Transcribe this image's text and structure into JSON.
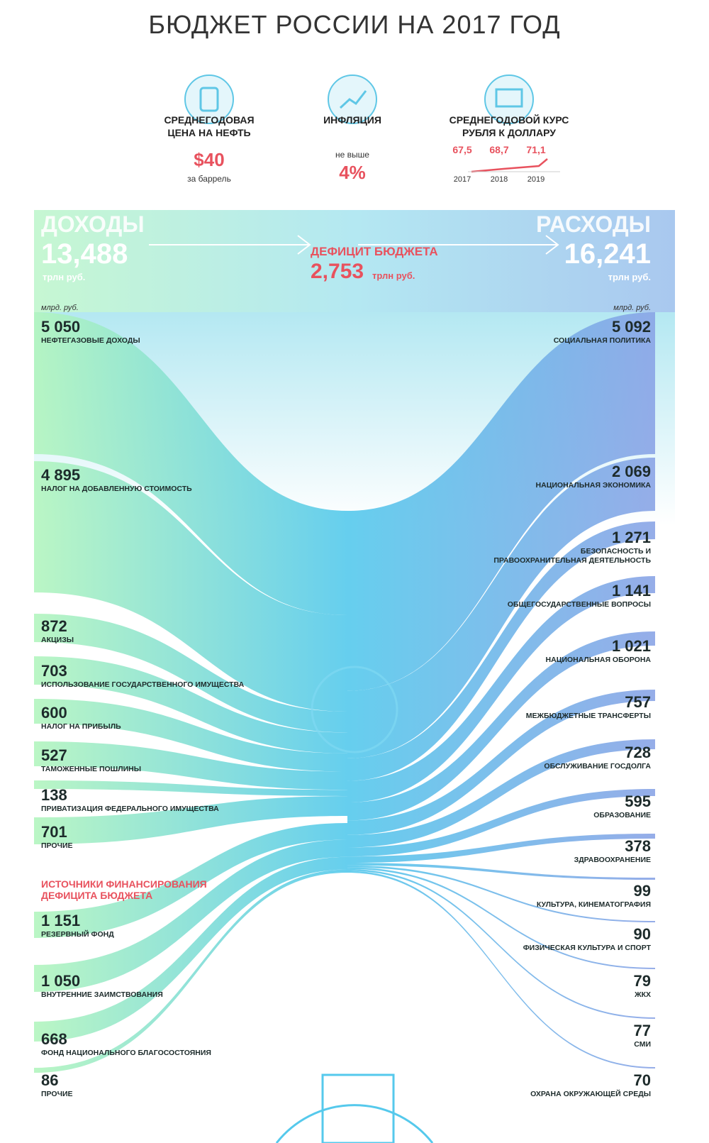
{
  "header": {
    "title": "БЮДЖЕТ РОССИИ НА 2017 ГОД"
  },
  "indicators": {
    "oil": {
      "label": "СРЕДНЕГОДОВАЯ ЦЕНА НА НЕФТЬ",
      "value": "$40",
      "note": "за баррель"
    },
    "inflation": {
      "label": "ИНФЛЯЦИЯ",
      "note": "не выше",
      "value": "4%"
    },
    "rate": {
      "label": "СРЕДНЕГОДОВОЙ КУРС РУБЛЯ К ДОЛЛАРУ",
      "points": [
        {
          "year": "2017",
          "value": "67,5"
        },
        {
          "year": "2018",
          "value": "68,7"
        },
        {
          "year": "2019",
          "value": "71,1"
        }
      ]
    }
  },
  "income": {
    "title": "ДОХОДЫ",
    "total": "13,488",
    "unit": "трлн руб.",
    "items_unit": "млрд. руб.",
    "items": [
      {
        "value": "5 050",
        "label": "НЕФТЕГАЗОВЫЕ ДОХОДЫ"
      },
      {
        "value": "4 895",
        "label": "НАЛОГ НА ДОБАВЛЕННУЮ СТОИМОСТЬ"
      },
      {
        "value": "872",
        "label": "АКЦИЗЫ"
      },
      {
        "value": "703",
        "label": "ИСПОЛЬЗОВАНИЕ ГОСУДАРСТВЕННОГО ИМУЩЕСТВА"
      },
      {
        "value": "600",
        "label": "НАЛОГ НА ПРИБЫЛЬ"
      },
      {
        "value": "527",
        "label": "ТАМОЖЕННЫЕ ПОШЛИНЫ"
      },
      {
        "value": "138",
        "label": "ПРИВАТИЗАЦИЯ ФЕДЕРАЛЬНОГО ИМУЩЕСТВА"
      },
      {
        "value": "701",
        "label": "ПРОЧИЕ"
      }
    ]
  },
  "deficit": {
    "title": "ДЕФИЦИТ БЮДЖЕТА",
    "value": "2,753",
    "unit": "трлн руб."
  },
  "financing": {
    "title": "ИСТОЧНИКИ ФИНАНСИРОВАНИЯ ДЕФИЦИТА БЮДЖЕТА",
    "items": [
      {
        "value": "1 151",
        "label": "РЕЗЕРВНЫЙ ФОНД"
      },
      {
        "value": "1 050",
        "label": "ВНУТРЕННИЕ ЗАИМСТВОВАНИЯ"
      },
      {
        "value": "668",
        "label": "ФОНД НАЦИОНАЛЬНОГО БЛАГОСОСТОЯНИЯ"
      },
      {
        "value": "86",
        "label": "ПРОЧИЕ"
      }
    ]
  },
  "expenses": {
    "title": "РАСХОДЫ",
    "total": "16,241",
    "unit": "трлн руб.",
    "items_unit": "млрд. руб.",
    "items": [
      {
        "value": "5 092",
        "label": "СОЦИАЛЬНАЯ ПОЛИТИКА"
      },
      {
        "value": "2 069",
        "label": "НАЦИОНАЛЬНАЯ ЭКОНОМИКА"
      },
      {
        "value": "1 271",
        "label": "БЕЗОПАСНОСТЬ И ПРАВООХРАНИТЕЛЬНАЯ ДЕЯТЕЛЬНОСТЬ"
      },
      {
        "value": "1 141",
        "label": "ОБЩЕГОСУДАРСТВЕННЫЕ ВОПРОСЫ"
      },
      {
        "value": "1 021",
        "label": "НАЦИОНАЛЬНАЯ ОБОРОНА"
      },
      {
        "value": "757",
        "label": "МЕЖБЮДЖЕТНЫЕ ТРАНСФЕРТЫ"
      },
      {
        "value": "728",
        "label": "ОБСЛУЖИВАНИЕ ГОСДОЛГА"
      },
      {
        "value": "595",
        "label": "ОБРАЗОВАНИЕ"
      },
      {
        "value": "378",
        "label": "ЗДРАВООХРАНЕНИЕ"
      },
      {
        "value": "99",
        "label": "КУЛЬТУРА, КИНЕМАТОГРАФИЯ"
      },
      {
        "value": "90",
        "label": "ФИЗИЧЕСКАЯ КУЛЬТУРА И СПОРТ"
      },
      {
        "value": "79",
        "label": "ЖКХ"
      },
      {
        "value": "77",
        "label": "СМИ"
      },
      {
        "value": "70",
        "label": "ОХРАНА ОКРУЖАЮЩЕЙ СРЕДЫ"
      }
    ]
  }
}
